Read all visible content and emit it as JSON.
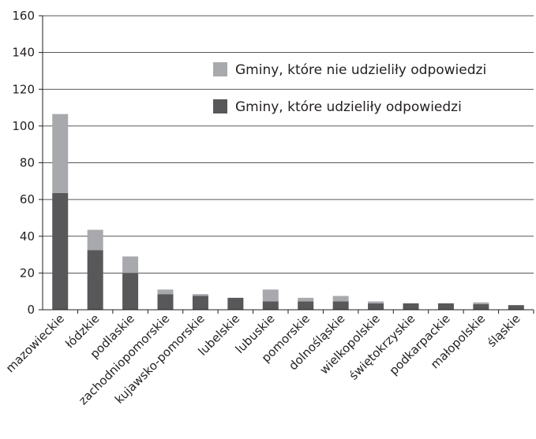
{
  "chart_data": {
    "type": "bar",
    "stacked": true,
    "categories": [
      "mazowieckie",
      "łódzkie",
      "podlaskie",
      "zachodniopomorskie",
      "kujawsko-pomorskie",
      "lubelskie",
      "lubuskie",
      "pomorskie",
      "dolnośląskie",
      "wielkopolskie",
      "świętokrzyskie",
      "podkarpackie",
      "małopolskie",
      "śląskie"
    ],
    "series": [
      {
        "name": "Gminy, które udzieliły odpowiedzi",
        "color": "#58585a",
        "values": [
          63.5,
          32.5,
          20,
          8.5,
          7.5,
          6.5,
          4.5,
          4.5,
          4.5,
          3.5,
          3.5,
          3.5,
          3,
          2.5
        ]
      },
      {
        "name": "Gminy, które nie udzieliły odpowiedzi",
        "color": "#a7a9ac",
        "values": [
          43,
          11,
          9,
          2.5,
          1,
          0,
          6.5,
          2,
          3,
          1,
          0,
          0,
          1,
          0
        ]
      }
    ],
    "ylim": [
      0,
      160
    ],
    "yticks": [
      0,
      20,
      40,
      60,
      80,
      100,
      120,
      140,
      160
    ],
    "grid": true,
    "legend": "top-right",
    "legend_order": [
      1,
      0
    ]
  }
}
